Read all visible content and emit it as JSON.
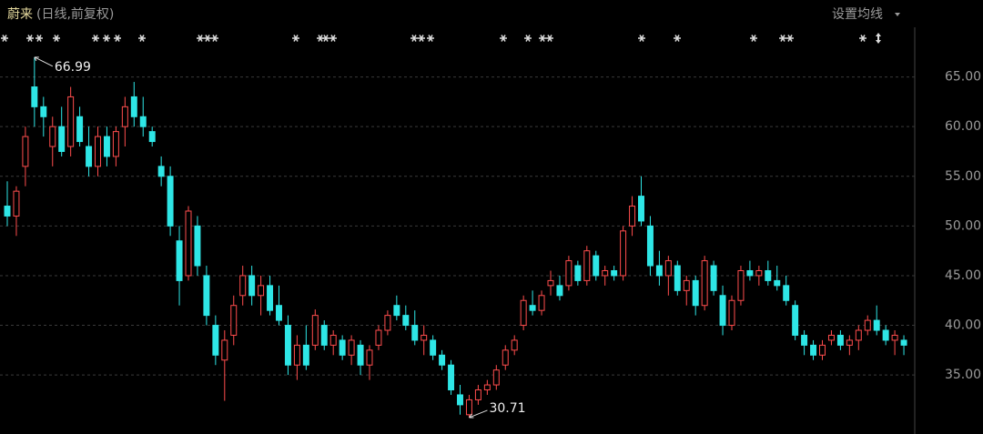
{
  "chart_data": {
    "type": "candlestick",
    "title": "蔚来",
    "subtitle": "(日线,前复权)",
    "menu": "设置均线",
    "open": [
      52,
      51,
      56,
      64,
      62,
      58,
      60,
      58,
      61,
      58,
      56,
      59,
      57,
      60,
      63,
      61,
      59.5,
      56,
      55,
      48.5,
      45,
      50,
      45,
      40,
      36.5,
      39,
      43,
      45,
      43,
      44,
      42,
      40,
      36,
      38,
      38,
      40,
      38,
      38.5,
      37,
      38,
      36,
      38,
      39.5,
      42,
      41,
      40,
      38.5,
      38.5,
      37,
      36,
      33,
      31,
      32.5,
      33.5,
      34,
      36,
      37.5,
      40,
      42,
      41.5,
      44,
      44,
      44,
      46,
      44.5,
      47,
      45,
      45.5,
      45,
      50,
      53,
      50,
      46,
      45,
      46,
      43.5,
      44.5,
      42,
      46,
      43,
      40,
      42.5,
      45.5,
      45,
      45.5,
      44.5,
      44,
      42,
      39,
      38,
      37,
      38.5,
      39,
      38,
      38.5,
      39.5,
      40.5,
      39.5,
      38.5,
      38.5
    ],
    "high": [
      54.5,
      54,
      60,
      66.99,
      63,
      61,
      62,
      64,
      62,
      60,
      60,
      60,
      60,
      63,
      64.5,
      63,
      60,
      57,
      56,
      50,
      52,
      51,
      46,
      41,
      39.5,
      43,
      46,
      46,
      45,
      45,
      44,
      41,
      39,
      40,
      41.6,
      40.5,
      39.5,
      39,
      39,
      38.5,
      38,
      40,
      41.5,
      43,
      42,
      41.5,
      40,
      39,
      37.5,
      36.5,
      34,
      33,
      34,
      34.5,
      36,
      38,
      39,
      43,
      43.5,
      43.5,
      45.5,
      45,
      47,
      46.5,
      48,
      47.5,
      46,
      46,
      50,
      53,
      55,
      51,
      47.5,
      47,
      46.5,
      45,
      45,
      47,
      46.5,
      44,
      43,
      46,
      46.5,
      46,
      46.5,
      46,
      45,
      42.5,
      39.5,
      38.5,
      38.5,
      39.5,
      39.5,
      39,
      40,
      41,
      42,
      40,
      39.5,
      39
    ],
    "low": [
      50,
      49,
      54,
      60,
      59,
      56,
      57,
      57,
      58,
      55,
      55,
      56,
      56,
      58,
      60,
      59,
      58,
      54,
      49,
      42,
      44.5,
      45,
      40,
      36,
      32.4,
      38,
      42,
      42,
      41,
      41,
      40,
      35,
      34.5,
      35.5,
      37.5,
      37.5,
      37,
      36.5,
      36,
      35,
      34.5,
      37.5,
      39,
      40.5,
      39.5,
      38,
      37,
      36.5,
      35.5,
      33,
      31,
      30.71,
      32,
      33,
      33.5,
      35.5,
      37,
      39.5,
      41,
      41,
      43,
      42.5,
      43.5,
      44,
      44,
      44.5,
      44,
      44.5,
      44.5,
      49,
      50,
      45,
      44,
      43,
      43,
      42,
      41,
      41.5,
      43,
      39,
      39.5,
      42,
      44.5,
      44,
      44,
      43.5,
      42,
      38.5,
      37,
      36.5,
      36.5,
      38,
      37.5,
      37,
      37.5,
      39,
      39,
      38,
      37,
      37
    ],
    "close": [
      51,
      53.5,
      59,
      62,
      61,
      60,
      57.5,
      63,
      58.5,
      56,
      59,
      57,
      59.5,
      62,
      61,
      60,
      58.5,
      55,
      50,
      44.5,
      51.5,
      46,
      41,
      37,
      38.5,
      42,
      45,
      43,
      44,
      41.5,
      40.5,
      36,
      38,
      36,
      41,
      38,
      39,
      37,
      38.5,
      36,
      37.5,
      39.5,
      41,
      41,
      40,
      38.5,
      39,
      37,
      36,
      33.5,
      32,
      32.5,
      33.5,
      34,
      35.5,
      37.5,
      38.5,
      42.5,
      41.5,
      43,
      44.5,
      43,
      46.5,
      44.5,
      47.5,
      45,
      45.5,
      45,
      49.5,
      52,
      50.5,
      46,
      45,
      46.5,
      43.5,
      44.5,
      42,
      46.5,
      43.5,
      40,
      42.5,
      45.5,
      45,
      45.5,
      44.5,
      44,
      42.5,
      39,
      38,
      37,
      38,
      39,
      38,
      38.5,
      39.5,
      40.5,
      39.5,
      38.5,
      39,
      38
    ],
    "up_color": "#ff4d4d",
    "down_color": "#2ee6e6",
    "annotations": {
      "max": 66.99,
      "min": 30.71
    },
    "ylim": [
      29.7,
      70.0
    ],
    "yticks": [
      {
        "value": 35,
        "label": "35.00"
      },
      {
        "value": 40,
        "label": "40.00"
      },
      {
        "value": 45,
        "label": "45.00"
      },
      {
        "value": 50,
        "label": "50.00"
      },
      {
        "value": 55,
        "label": "55.00"
      },
      {
        "value": 60,
        "label": "60.00"
      },
      {
        "value": 65,
        "label": "65.00"
      }
    ],
    "grid": true
  }
}
